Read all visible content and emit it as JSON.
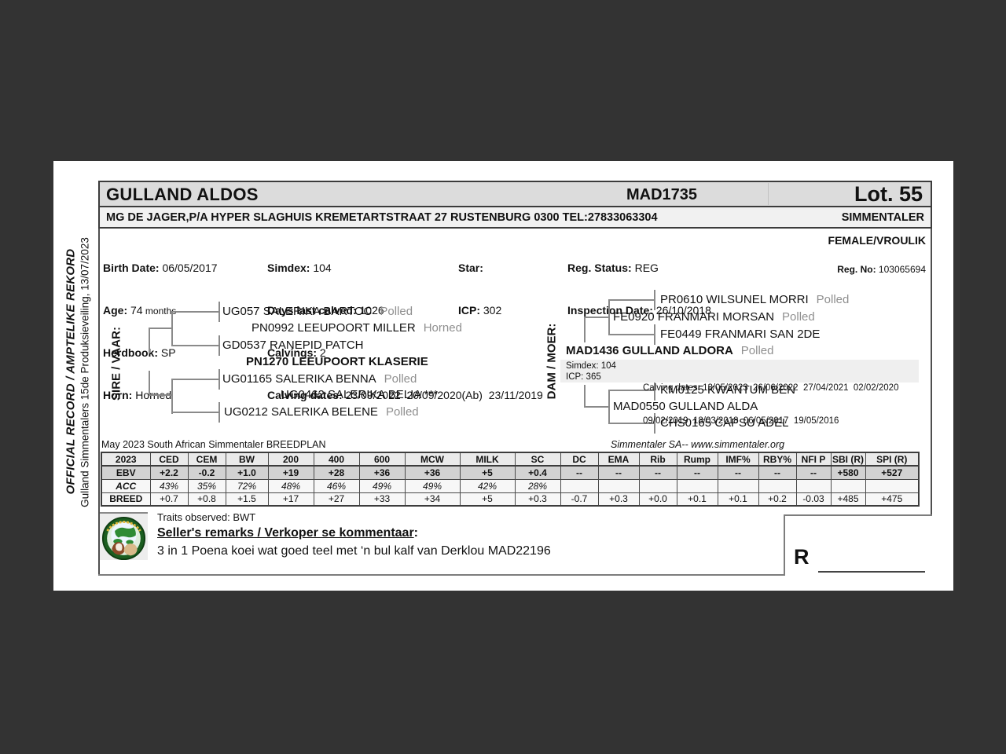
{
  "colors": {
    "surround": "#333333",
    "page": "#ffffff",
    "bar_gray": "#dcdcdc",
    "bar_light": "#f1f1f1",
    "status_gray": "#8f8f8f",
    "ebv_row": "#d2d2d2"
  },
  "side": {
    "line1": "OFFICIAL RECORD / AMPTELIKE REKORD",
    "line2": "Gulland Simmentalers 15de Produksieveiling, 13/07/2023"
  },
  "header": {
    "animal_name": "GULLAND ALDOS",
    "animal_id": "MAD1735",
    "lot": "Lot. 55",
    "breeder_line": "MG DE JAGER,P/A HYPER SLAGHUIS KREMETARTSTRAAT 27 RUSTENBURG 0300 TEL:27833063304",
    "breed": "SIMMENTALER"
  },
  "info": {
    "col1": [
      {
        "label": "Birth Date:",
        "value": "06/05/2017"
      },
      {
        "label": "Age:",
        "value": "74",
        "unit": " months"
      },
      {
        "label": "Herdbook:",
        "value": "SP"
      },
      {
        "label": "Horn:",
        "value": "Horned"
      }
    ],
    "col2": [
      {
        "label": "Simdex:",
        "value": "104"
      },
      {
        "label": "Days last calved:",
        "value": "1026"
      },
      {
        "label": "Calvings:",
        "value": "2"
      },
      {
        "label": "Calving dates:",
        "value": "23/09/2022  20/09/2020(Ab)  23/11/2019"
      }
    ],
    "col3": [
      {
        "label": "Star:",
        "value": ""
      },
      {
        "label": "ICP:",
        "value": "302"
      }
    ],
    "col4": [
      {
        "label": "Reg. Status:",
        "value": "REG"
      },
      {
        "label": "Inspection Date:",
        "value": "26/10/2018"
      }
    ],
    "sex": "FEMALE/VROULIK",
    "reg_no_label": "Reg. No:",
    "reg_no": "103065694"
  },
  "sire_tree": {
    "label": "SIRE / VAAR:",
    "gg1": {
      "name": "UG057 SALERIKA BARTOC",
      "status": "Polled"
    },
    "gs": {
      "name": "PN0992 LEEUPOORT MILLER",
      "status": "Horned"
    },
    "gg2": {
      "name": "GD0537 RANEPID PATCH",
      "status": ""
    },
    "sire": {
      "name": "PN1270 LEEUPOORT KLASERIE",
      "status": ""
    },
    "gg3": {
      "name": "UG01165 SALERIKA BENNA",
      "status": "Polled"
    },
    "gd": {
      "name": "UG0462 SALERIKA BELIA ***",
      "status": ""
    },
    "gg4": {
      "name": "UG0212 SALERIKA BELENE",
      "status": "Polled"
    }
  },
  "dam_tree": {
    "label": "DAM / MOER:",
    "gg1": {
      "name": "PR0610 WILSUNEL MORRI",
      "status": "Polled"
    },
    "gs": {
      "name": "FE0920 FRANMARI MORSAN",
      "status": "Polled"
    },
    "gg2": {
      "name": "FE0449 FRANMARI SAN 2DE",
      "status": ""
    },
    "dam": {
      "name": "MAD1436 GULLAND ALDORA",
      "status": "Polled"
    },
    "dam_info": {
      "simdex": "Simdex: 104",
      "icp": "ICP: 365",
      "calving_line1": "Calving dates: 13/05/2023  26/06/2022  27/04/2021  02/02/2020",
      "calving_line2": "09/02/2019  18/03/2018  06/05/2017  19/05/2016"
    },
    "gg3": {
      "name": "KM0125 KWANTUM BEN",
      "status": ""
    },
    "gd": {
      "name": "MAD0550 GULLAND ALDA",
      "status": ""
    },
    "gg4": {
      "name": "CHS0165 CAPSU ADEL",
      "status": ""
    }
  },
  "breedplan": {
    "caption_left": "May 2023 South African Simmentaler BREEDPLAN",
    "caption_right": "Simmentaler SA-- www.simmentaler.org",
    "headers": [
      "2023",
      "CED",
      "CEM",
      "BW",
      "200",
      "400",
      "600",
      "MCW",
      "MILK",
      "SC",
      "DC",
      "EMA",
      "Rib",
      "Rump",
      "IMF%",
      "RBY%",
      "NFI P",
      "SBI (R)",
      "SPI (R)"
    ],
    "rows": [
      {
        "label": "EBV",
        "values": [
          "+2.2",
          "-0.2",
          "+1.0",
          "+19",
          "+28",
          "+36",
          "+36",
          "+5",
          "+0.4",
          "--",
          "--",
          "--",
          "--",
          "--",
          "--",
          "--",
          "+580",
          "+527"
        ]
      },
      {
        "label": "ACC",
        "values": [
          "43%",
          "35%",
          "72%",
          "48%",
          "46%",
          "49%",
          "49%",
          "42%",
          "28%",
          "",
          "",
          "",
          "",
          "",
          "",
          "",
          "",
          ""
        ]
      },
      {
        "label": "BREED",
        "values": [
          "+0.7",
          "+0.8",
          "+1.5",
          "+17",
          "+27",
          "+33",
          "+34",
          "+5",
          "+0.3",
          "-0.7",
          "+0.3",
          "+0.0",
          "+0.1",
          "+0.1",
          "+0.2",
          "-0.03",
          "+485",
          "+475"
        ]
      }
    ]
  },
  "footer": {
    "traits": "Traits observed: BWT",
    "remarks_heading": "Seller's remarks / Verkoper se kommentaar",
    "remarks_colon": ":",
    "remarks": "3 in 1 Poena koei wat goed teel met ‘n bul kalf van Derklou MAD22196",
    "price_prefix": "R"
  }
}
